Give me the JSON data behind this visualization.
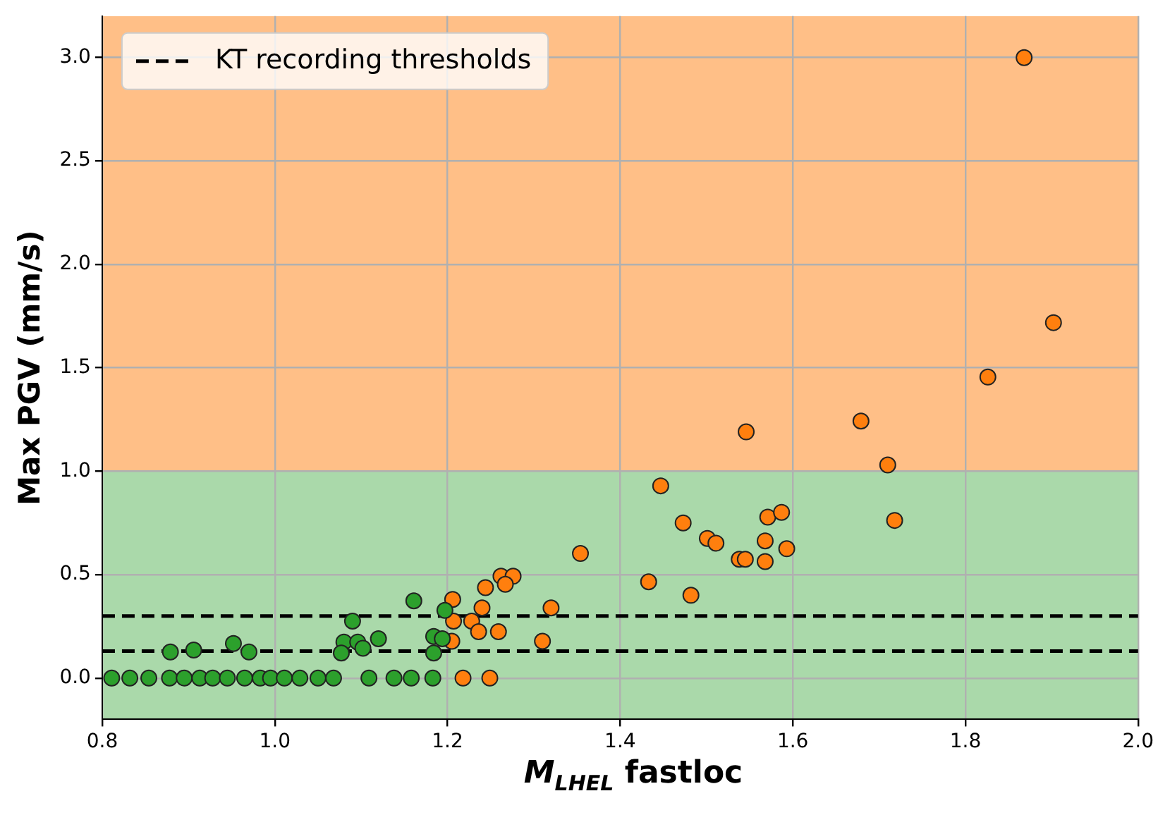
{
  "chart_data": {
    "type": "scatter",
    "xlabel": "M$_{LHEL}$ fastloc",
    "ylabel": "Max PGV (mm/s)",
    "xlim": [
      0.8,
      2.0
    ],
    "xticks": [
      {
        "value": 0.8,
        "label": "0.8"
      },
      {
        "value": 1.0,
        "label": "1.0"
      },
      {
        "value": 1.2,
        "label": "1.2"
      },
      {
        "value": 1.4,
        "label": "1.4"
      },
      {
        "value": 1.6,
        "label": "1.6"
      },
      {
        "value": 1.8,
        "label": "1.8"
      },
      {
        "value": 2.0,
        "label": "2.0"
      }
    ],
    "ylim": [
      -0.2,
      3.2
    ],
    "yticks": [
      {
        "value": 0,
        "label": "0.0"
      },
      {
        "value": 0.5,
        "label": "0.5"
      },
      {
        "value": 1.0,
        "label": "1.0"
      },
      {
        "value": 1.5,
        "label": "1.5"
      },
      {
        "value": 2.0,
        "label": "2.0"
      },
      {
        "value": 2.5,
        "label": "2.5"
      },
      {
        "value": 3.0,
        "label": "3.0"
      }
    ],
    "grid": true,
    "marker": "circle",
    "legend": "top left",
    "bands": [
      {
        "axis": "y",
        "from": -0.2,
        "to": 1.0,
        "color": "#aad9aa"
      },
      {
        "axis": "y",
        "from": 1.0,
        "to": 3.2,
        "color": "#ffbf87"
      }
    ],
    "ref_lines": [
      {
        "axis": "y",
        "value": 0.3,
        "label": "KT recording thresholds",
        "color": "#000000",
        "line_style": "dashed"
      },
      {
        "axis": "y",
        "value": 0.13,
        "color": "#000000",
        "line_style": "dashed"
      }
    ],
    "series": [
      {
        "color": "#2ca02c",
        "x": [
          0.811,
          0.832,
          0.854,
          0.878,
          0.895,
          0.913,
          0.928,
          0.945,
          0.965,
          0.983,
          0.995,
          1.011,
          1.029,
          1.05,
          1.068,
          1.109,
          1.138,
          1.158,
          1.183,
          0.879,
          0.906,
          0.952,
          0.97,
          1.09,
          1.08,
          1.077,
          1.096,
          1.102,
          1.12,
          1.161,
          1.184,
          1.184,
          1.197,
          1.194
        ],
        "values": [
          0,
          0,
          0,
          0,
          0,
          0,
          0,
          0,
          0,
          0,
          0,
          0,
          0,
          0,
          0,
          0,
          0,
          0,
          0,
          0.126,
          0.135,
          0.167,
          0.126,
          0.275,
          0.174,
          0.121,
          0.174,
          0.144,
          0.19,
          0.373,
          0.201,
          0.121,
          0.327,
          0.19
        ]
      },
      {
        "color": "#ff7f0e",
        "x": [
          1.218,
          1.249,
          1.206,
          1.207,
          1.24,
          1.228,
          1.236,
          1.259,
          1.205,
          1.244,
          1.262,
          1.276,
          1.267,
          1.32,
          1.31,
          1.354,
          1.433,
          1.447,
          1.473,
          1.482,
          1.501,
          1.511,
          1.538,
          1.545,
          1.546,
          1.568,
          1.568,
          1.571,
          1.587,
          1.593,
          1.679,
          1.71,
          1.718,
          1.868,
          1.902,
          1.826
        ],
        "values": [
          0,
          0,
          0.38,
          0.275,
          0.339,
          0.275,
          0.224,
          0.224,
          0.178,
          0.437,
          0.492,
          0.492,
          0.453,
          0.339,
          0.178,
          0.602,
          0.465,
          0.929,
          0.75,
          0.4,
          0.675,
          0.652,
          0.574,
          0.574,
          1.19,
          0.663,
          0.563,
          0.778,
          0.801,
          0.625,
          1.242,
          1.03,
          0.762,
          2.999,
          1.718,
          1.455
        ]
      }
    ]
  }
}
